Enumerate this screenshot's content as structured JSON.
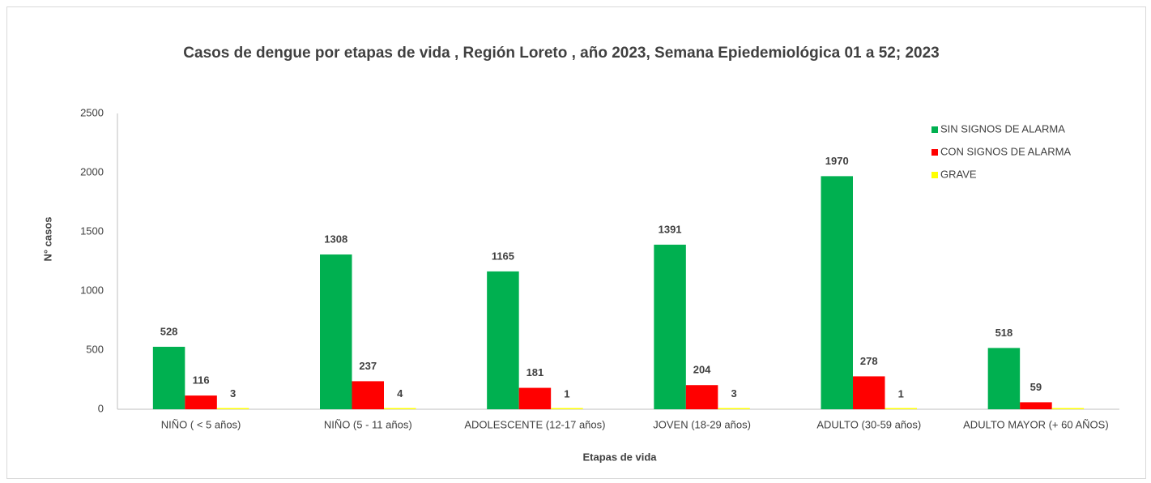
{
  "chart_data": {
    "type": "bar",
    "title": "Casos de dengue por etapas de vida , Región Loreto , año 2023, Semana Epiedemiológica  01 a 52; 2023",
    "x_label": "Etapas de vida",
    "y_label": "N° casos",
    "categories": [
      "NIÑO ( < 5 años)",
      "NIÑO (5 - 11 años)",
      "ADOLESCENTE (12-17 años)",
      "JOVEN (18-29 años)",
      "ADULTO (30-59 años)",
      "ADULTO MAYOR (+ 60 AÑOS)"
    ],
    "series": [
      {
        "name": "SIN SIGNOS DE ALARMA",
        "color": "#00b050",
        "values": [
          528,
          1308,
          1165,
          1391,
          1970,
          518
        ]
      },
      {
        "name": "CON SIGNOS DE ALARMA",
        "color": "#ff0000",
        "values": [
          116,
          237,
          181,
          204,
          278,
          59
        ]
      },
      {
        "name": "GRAVE",
        "color": "#ffff00",
        "values": [
          3,
          4,
          1,
          3,
          1,
          0
        ],
        "value_labels": [
          "3",
          "4",
          "1",
          "3",
          "1",
          null
        ]
      }
    ],
    "ylim": [
      0,
      2500
    ],
    "yticks": [
      0,
      500,
      1000,
      1500,
      2000,
      2500
    ],
    "grid": false,
    "legend": "upper right"
  }
}
